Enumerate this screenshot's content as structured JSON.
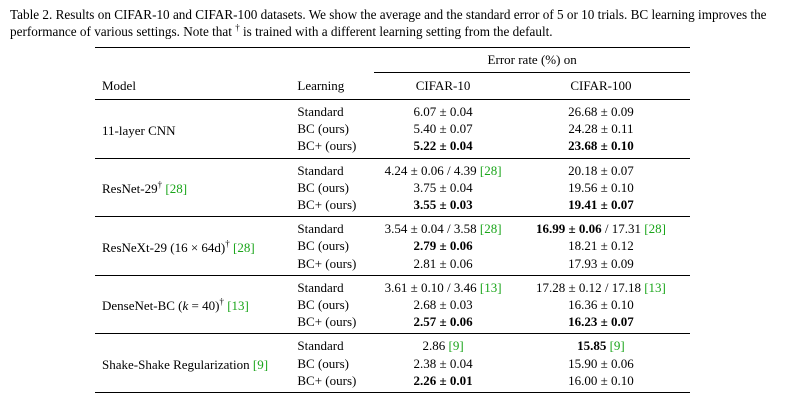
{
  "caption": {
    "label": "Table 2.",
    "text_before_dagger": " Results on CIFAR-10 and CIFAR-100 datasets. We show the average and the standard error of 5 or 10 trials. BC learning improves the performance of various settings. Note that ",
    "dagger": "†",
    "text_after_dagger": " is trained with a different learning setting from the default."
  },
  "header": {
    "group_label": "Error rate (%) on",
    "model": "Model",
    "learning": "Learning",
    "cifar10": "CIFAR-10",
    "cifar100": "CIFAR-100"
  },
  "groups": [
    {
      "model": [
        {
          "t": "11-layer CNN"
        }
      ],
      "rows": [
        {
          "learning": "Standard",
          "c10": [
            {
              "t": "6.07 ± 0.04"
            }
          ],
          "c100": [
            {
              "t": "26.68 ± 0.09"
            }
          ]
        },
        {
          "learning": "BC (ours)",
          "c10": [
            {
              "t": "5.40 ± 0.07"
            }
          ],
          "c100": [
            {
              "t": "24.28 ± 0.11"
            }
          ]
        },
        {
          "learning": "BC+ (ours)",
          "c10": [
            {
              "t": "5.22 ± 0.04",
              "b": true
            }
          ],
          "c100": [
            {
              "t": "23.68 ± 0.10",
              "b": true
            }
          ]
        }
      ]
    },
    {
      "model": [
        {
          "t": "ResNet-29"
        },
        {
          "t": "†",
          "sup": true
        },
        {
          "t": " "
        },
        {
          "t": "[28]",
          "ref": true
        }
      ],
      "rows": [
        {
          "learning": "Standard",
          "c10": [
            {
              "t": "4.24 ± 0.06 / 4.39 "
            },
            {
              "t": "[28]",
              "ref": true
            }
          ],
          "c100": [
            {
              "t": "20.18 ± 0.07"
            }
          ]
        },
        {
          "learning": "BC (ours)",
          "c10": [
            {
              "t": "3.75 ± 0.04"
            }
          ],
          "c100": [
            {
              "t": "19.56 ± 0.10"
            }
          ]
        },
        {
          "learning": "BC+ (ours)",
          "c10": [
            {
              "t": "3.55 ± 0.03",
              "b": true
            }
          ],
          "c100": [
            {
              "t": "19.41 ± 0.07",
              "b": true
            }
          ]
        }
      ]
    },
    {
      "model": [
        {
          "t": "ResNeXt-29 (16 × 64d)"
        },
        {
          "t": "†",
          "sup": true
        },
        {
          "t": " "
        },
        {
          "t": "[28]",
          "ref": true
        }
      ],
      "rows": [
        {
          "learning": "Standard",
          "c10": [
            {
              "t": "3.54 ± 0.04 / 3.58 "
            },
            {
              "t": "[28]",
              "ref": true
            }
          ],
          "c100": [
            {
              "t": "16.99 ± 0.06",
              "b": true
            },
            {
              "t": " / 17.31 "
            },
            {
              "t": "[28]",
              "ref": true
            }
          ]
        },
        {
          "learning": "BC (ours)",
          "c10": [
            {
              "t": "2.79 ± 0.06",
              "b": true
            }
          ],
          "c100": [
            {
              "t": "18.21 ± 0.12"
            }
          ]
        },
        {
          "learning": "BC+ (ours)",
          "c10": [
            {
              "t": "2.81 ± 0.06"
            }
          ],
          "c100": [
            {
              "t": "17.93 ± 0.09"
            }
          ]
        }
      ]
    },
    {
      "model": [
        {
          "t": "DenseNet-BC ("
        },
        {
          "t": "k",
          "i": true
        },
        {
          "t": " = 40)"
        },
        {
          "t": "†",
          "sup": true
        },
        {
          "t": " "
        },
        {
          "t": "[13]",
          "ref": true
        }
      ],
      "rows": [
        {
          "learning": "Standard",
          "c10": [
            {
              "t": "3.61 ± 0.10 / 3.46 "
            },
            {
              "t": "[13]",
              "ref": true
            }
          ],
          "c100": [
            {
              "t": "17.28 ± 0.12 / 17.18 "
            },
            {
              "t": "[13]",
              "ref": true
            }
          ]
        },
        {
          "learning": "BC (ours)",
          "c10": [
            {
              "t": "2.68 ± 0.03"
            }
          ],
          "c100": [
            {
              "t": "16.36 ± 0.10"
            }
          ]
        },
        {
          "learning": "BC+ (ours)",
          "c10": [
            {
              "t": "2.57 ± 0.06",
              "b": true
            }
          ],
          "c100": [
            {
              "t": "16.23 ± 0.07",
              "b": true
            }
          ]
        }
      ]
    },
    {
      "model": [
        {
          "t": "Shake-Shake Regularization "
        },
        {
          "t": "[9]",
          "ref": true
        }
      ],
      "rows": [
        {
          "learning": "Standard",
          "c10": [
            {
              "t": "2.86 "
            },
            {
              "t": "[9]",
              "ref": true
            }
          ],
          "c100": [
            {
              "t": "15.85",
              "b": true
            },
            {
              "t": " "
            },
            {
              "t": "[9]",
              "ref": true
            }
          ]
        },
        {
          "learning": "BC (ours)",
          "c10": [
            {
              "t": "2.38 ± 0.04"
            }
          ],
          "c100": [
            {
              "t": "15.90 ± 0.06"
            }
          ]
        },
        {
          "learning": "BC+ (ours)",
          "c10": [
            {
              "t": "2.26 ± 0.01",
              "b": true
            }
          ],
          "c100": [
            {
              "t": "16.00 ± 0.10"
            }
          ]
        }
      ]
    }
  ]
}
